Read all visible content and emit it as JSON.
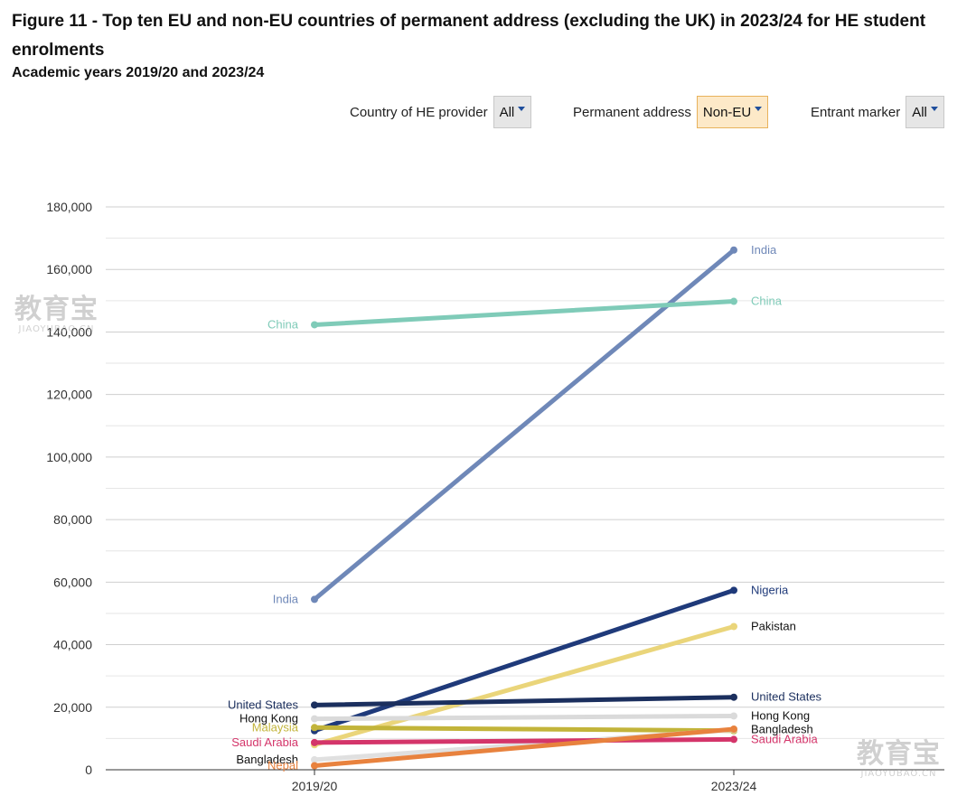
{
  "header": {
    "title": "Figure 11 - Top ten EU and non-EU countries of permanent address (excluding the UK) in 2023/24 for HE student enrolments",
    "subtitle": "Academic years 2019/20 and 2023/24"
  },
  "filters": [
    {
      "label": "Country of HE provider",
      "value": "All"
    },
    {
      "label": "Permanent address",
      "value": "Non-EU"
    },
    {
      "label": "Entrant marker",
      "value": "All"
    }
  ],
  "watermarks": [
    {
      "text": "教育宝",
      "sub": "JIAOYUBAO.CN"
    },
    {
      "text": "教育宝",
      "sub": "JIAOYUBAO.CN"
    }
  ],
  "chart_data": {
    "type": "line",
    "categories": [
      "2019/20",
      "2023/24"
    ],
    "ylim": [
      0,
      180000
    ],
    "yticks": [
      "0",
      "20,000",
      "40,000",
      "60,000",
      "80,000",
      "100,000",
      "120,000",
      "140,000",
      "160,000",
      "180,000"
    ],
    "grid": true,
    "series": [
      {
        "name": "India",
        "values": [
          54500,
          166200
        ],
        "color": "#6f88b8",
        "left_label": "India",
        "right_label": "India",
        "label_color": "#6f88b8"
      },
      {
        "name": "China",
        "values": [
          142300,
          149800
        ],
        "color": "#7fcbb8",
        "left_label": "China",
        "right_label": "China",
        "label_color": "#7fcbb8"
      },
      {
        "name": "Nigeria",
        "values": [
          12500,
          57400
        ],
        "color": "#1f3a7a",
        "left_label": "",
        "right_label": "Nigeria",
        "label_color": "#1f3a7a"
      },
      {
        "name": "Pakistan",
        "values": [
          8000,
          45800
        ],
        "color": "#ead57a",
        "left_label": "",
        "right_label": "Pakistan",
        "label_color": "#111111"
      },
      {
        "name": "United States",
        "values": [
          20700,
          23200
        ],
        "color": "#1b2f5e",
        "left_label": "United States",
        "right_label": "United States",
        "label_color": "#1b2f5e"
      },
      {
        "name": "Hong Kong",
        "values": [
          16300,
          17200
        ],
        "color": "#dadada",
        "left_label": "Hong Kong",
        "right_label": "Hong Kong",
        "label_color": "#111111"
      },
      {
        "name": "Malaysia",
        "values": [
          13500,
          12500
        ],
        "color": "#c2b43a",
        "left_label": "Malaysia",
        "right_label": "",
        "label_color": "#c2b43a"
      },
      {
        "name": "Bangladesh",
        "values": [
          3200,
          12800
        ],
        "color": "#e0e0e0",
        "left_label": "Bangladesh",
        "right_label": "Bangladesh",
        "label_color": "#111111"
      },
      {
        "name": "Saudi Arabia",
        "values": [
          8700,
          9700
        ],
        "color": "#d4356a",
        "left_label": "Saudi Arabia",
        "right_label": "Saudi Arabia",
        "label_color": "#d4356a"
      },
      {
        "name": "Nepal",
        "values": [
          1300,
          13000
        ],
        "color": "#e8823e",
        "left_label": "Nepal",
        "right_label": "",
        "label_color": "#e8823e"
      }
    ]
  }
}
